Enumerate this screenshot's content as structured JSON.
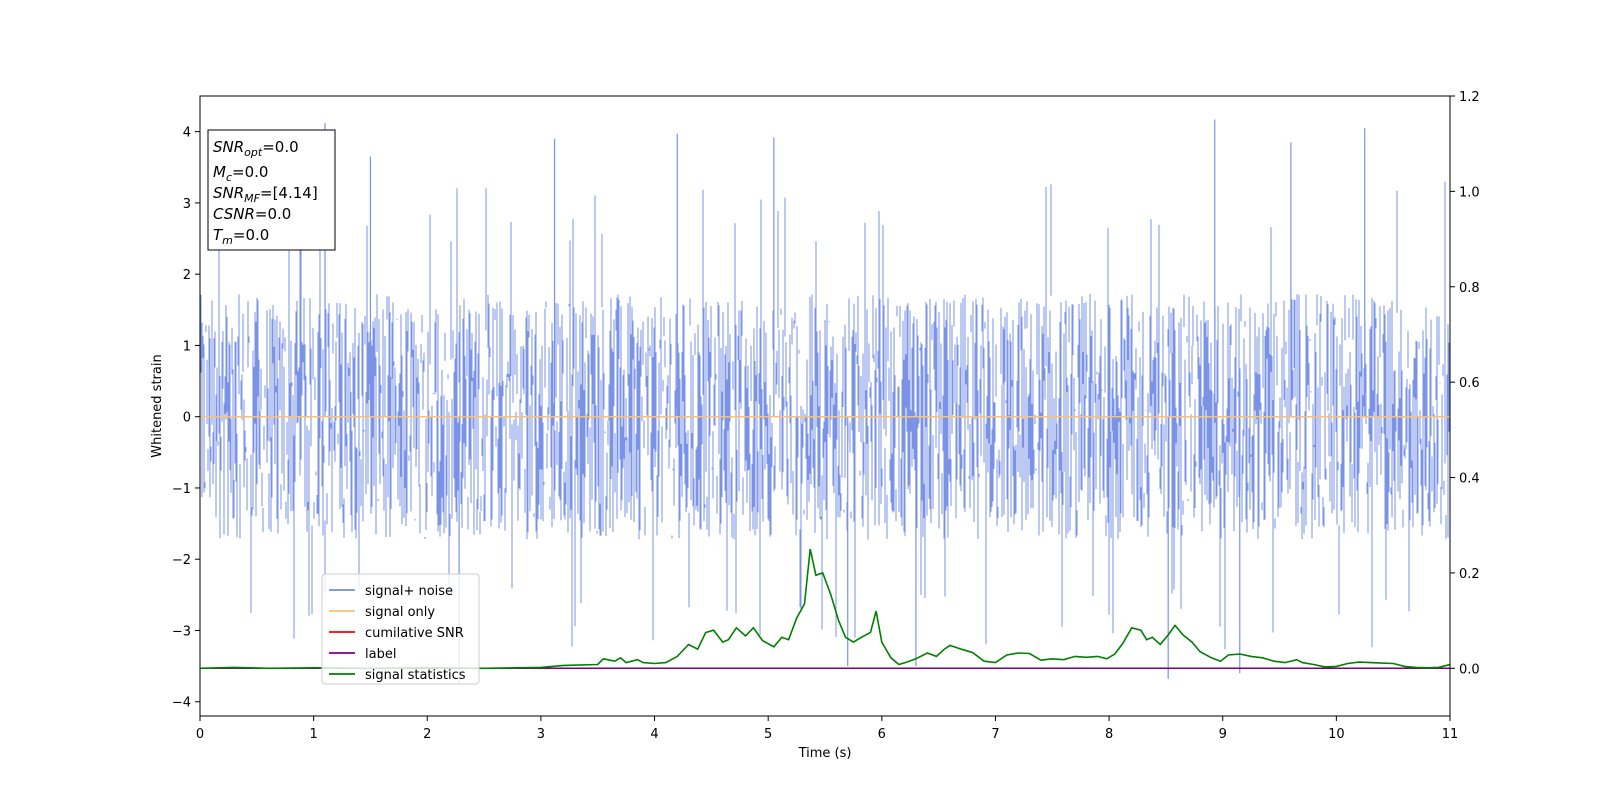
{
  "chart_data": {
    "type": "line",
    "xlabel": "Time (s)",
    "ylabel": "Whitened strain",
    "xlim": [
      0,
      11
    ],
    "ylim_left": [
      -4.2,
      4.5
    ],
    "ylim_right": [
      -0.1,
      1.2
    ],
    "x_ticks": [
      "0",
      "1",
      "2",
      "3",
      "4",
      "5",
      "6",
      "7",
      "8",
      "9",
      "10",
      "11"
    ],
    "y_ticks_left": [
      "−4",
      "−3",
      "−2",
      "−1",
      "0",
      "1",
      "2",
      "3",
      "4"
    ],
    "y_ticks_right": [
      "0.0",
      "0.2",
      "0.4",
      "0.6",
      "0.8",
      "1.0",
      "1.2"
    ],
    "grid": false,
    "legend_position": "lower-left",
    "legend": [
      {
        "label": "signal+ noise",
        "color": "#6f8de6"
      },
      {
        "label": "signal only",
        "color": "#f7c17a"
      },
      {
        "label": "cumilative SNR",
        "color": "#ff0000"
      },
      {
        "label": "label",
        "color": "#800080"
      },
      {
        "label": "signal statistics",
        "color": "#008000"
      }
    ],
    "annotation": {
      "lines": [
        {
          "var": "SNR",
          "sub": "opt",
          "value": "=0.0"
        },
        {
          "var": "M",
          "sub": "c",
          "value": "=0.0"
        },
        {
          "var": "SNR",
          "sub": "MF",
          "value": "=[4.14]"
        },
        {
          "var": "CSNR",
          "sub": "",
          "value": "=0.0"
        },
        {
          "var": "T",
          "sub": "m",
          "value": "=0.0"
        }
      ]
    },
    "series": [
      {
        "name": "signal+ noise",
        "axis": "left",
        "style": "dense noise trace",
        "band": [
          -2.3,
          2.4
        ],
        "peaks": [
          {
            "x": 1.1,
            "y": 4.12
          },
          {
            "x": 1.5,
            "y": 3.65
          },
          {
            "x": 2.28,
            "y": -3.75
          },
          {
            "x": 3.12,
            "y": 3.9
          },
          {
            "x": 4.2,
            "y": 3.97
          },
          {
            "x": 5.05,
            "y": 3.92
          },
          {
            "x": 5.7,
            "y": -3.5
          },
          {
            "x": 6.3,
            "y": -3.5
          },
          {
            "x": 8.52,
            "y": -3.68
          },
          {
            "x": 8.93,
            "y": 4.17
          },
          {
            "x": 9.15,
            "y": -3.6
          },
          {
            "x": 9.6,
            "y": 3.85
          },
          {
            "x": 10.25,
            "y": 4.05
          }
        ]
      },
      {
        "name": "signal only",
        "axis": "left",
        "x": [
          0,
          11
        ],
        "y": [
          0,
          0
        ]
      },
      {
        "name": "label",
        "axis": "right",
        "x": [
          0,
          11
        ],
        "y": [
          0,
          0
        ]
      },
      {
        "name": "signal statistics",
        "axis": "right",
        "x": [
          0,
          0.3,
          0.6,
          1.0,
          1.5,
          2.0,
          2.5,
          3.0,
          3.2,
          3.5,
          3.55,
          3.65,
          3.7,
          3.75,
          3.85,
          3.9,
          4.0,
          4.1,
          4.2,
          4.3,
          4.38,
          4.45,
          4.52,
          4.6,
          4.65,
          4.72,
          4.8,
          4.87,
          4.95,
          5.05,
          5.12,
          5.18,
          5.25,
          5.32,
          5.37,
          5.42,
          5.48,
          5.55,
          5.62,
          5.68,
          5.75,
          5.82,
          5.9,
          5.95,
          6.0,
          6.08,
          6.15,
          6.22,
          6.3,
          6.4,
          6.48,
          6.55,
          6.6,
          6.7,
          6.8,
          6.9,
          7.0,
          7.1,
          7.2,
          7.3,
          7.4,
          7.5,
          7.6,
          7.7,
          7.8,
          7.9,
          7.98,
          8.05,
          8.12,
          8.2,
          8.28,
          8.33,
          8.38,
          8.45,
          8.52,
          8.58,
          8.65,
          8.73,
          8.8,
          8.9,
          8.98,
          9.05,
          9.15,
          9.25,
          9.35,
          9.45,
          9.55,
          9.65,
          9.7,
          9.8,
          9.9,
          10.0,
          10.1,
          10.2,
          10.3,
          10.4,
          10.5,
          10.6,
          10.7,
          10.8,
          10.9,
          11.0
        ],
        "y": [
          0.0,
          0.002,
          0.0,
          0.001,
          0.0,
          0.001,
          0.0,
          0.002,
          0.006,
          0.008,
          0.02,
          0.015,
          0.022,
          0.012,
          0.018,
          0.012,
          0.01,
          0.012,
          0.025,
          0.05,
          0.04,
          0.075,
          0.08,
          0.055,
          0.06,
          0.085,
          0.068,
          0.085,
          0.058,
          0.045,
          0.065,
          0.06,
          0.105,
          0.135,
          0.25,
          0.195,
          0.2,
          0.155,
          0.1,
          0.065,
          0.055,
          0.065,
          0.075,
          0.12,
          0.055,
          0.022,
          0.008,
          0.013,
          0.02,
          0.032,
          0.025,
          0.04,
          0.048,
          0.04,
          0.033,
          0.015,
          0.012,
          0.028,
          0.032,
          0.031,
          0.017,
          0.02,
          0.018,
          0.025,
          0.023,
          0.025,
          0.02,
          0.03,
          0.052,
          0.085,
          0.08,
          0.06,
          0.065,
          0.05,
          0.07,
          0.09,
          0.07,
          0.055,
          0.035,
          0.022,
          0.015,
          0.028,
          0.03,
          0.025,
          0.022,
          0.015,
          0.012,
          0.018,
          0.012,
          0.008,
          0.003,
          0.004,
          0.01,
          0.013,
          0.012,
          0.011,
          0.01,
          0.004,
          0.002,
          0.001,
          0.002,
          0.008
        ]
      }
    ]
  }
}
